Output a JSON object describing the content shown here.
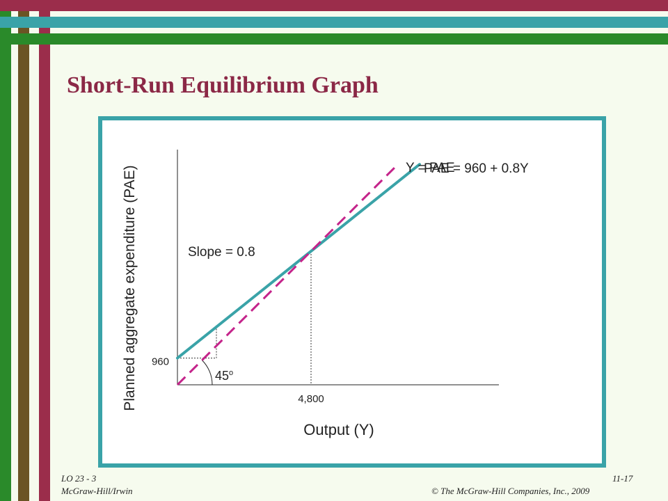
{
  "slide": {
    "title": "Short-Run Equilibrium Graph",
    "footer": {
      "lo": "LO 23 - 3",
      "publisher": "McGraw-Hill/Irwin",
      "page": "11-17",
      "copyright": "© The McGraw-Hill Companies, Inc., 2009"
    }
  },
  "colors": {
    "pae_line": "#3aa3a8",
    "y_pae_line": "#c4238a",
    "title": "#8b2846"
  },
  "chart_data": {
    "type": "line",
    "xlabel": "Output (Y)",
    "ylabel": "Planned aggregate expenditure (PAE)",
    "xlim": [
      0,
      11000
    ],
    "ylim": [
      0,
      8000
    ],
    "series": [
      {
        "name": "PAE = 960 + 0.8Y",
        "style": "solid",
        "x": [
          0,
          8700
        ],
        "y": [
          960,
          7920
        ]
      },
      {
        "name": "Y = PAE",
        "style": "dashed",
        "x": [
          0,
          7900
        ],
        "y": [
          0,
          7900
        ]
      }
    ],
    "equilibrium": {
      "x": 4800,
      "y": 4800
    },
    "tick_labels": {
      "x": "4,800",
      "y": "960"
    },
    "annotations": {
      "slope": "Slope = 0.8",
      "angle": "45",
      "angle_sup": "o"
    }
  }
}
